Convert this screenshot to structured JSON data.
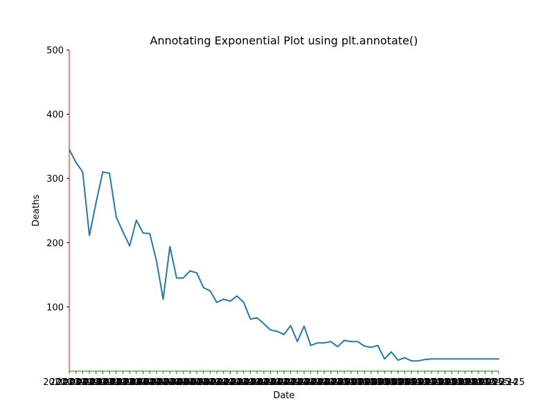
{
  "chart_data": {
    "type": "line",
    "title": "Annotating Exponential Plot using plt.annotate()",
    "xlabel": "Date",
    "ylabel": "Deaths",
    "ylim": [
      0,
      500
    ],
    "yticks": [
      100,
      200,
      300,
      400,
      500
    ],
    "grid": false,
    "colors": {
      "line": "#1f77b4",
      "left_spine": "#ff0000",
      "bottom_spine": "#008000"
    },
    "x": [
      "2020-03-22",
      "2020-03-23",
      "2020-03-24",
      "2020-03-25",
      "2020-03-26",
      "2020-03-27",
      "2020-03-28",
      "2020-03-29",
      "2020-03-30",
      "2020-03-31",
      "2020-04-01",
      "2020-04-02",
      "2020-04-03",
      "2020-04-04",
      "2020-04-05",
      "2020-04-06",
      "2020-04-07",
      "2020-04-08",
      "2020-04-09",
      "2020-04-10",
      "2020-04-11",
      "2020-04-12",
      "2020-04-13",
      "2020-04-14",
      "2020-04-15",
      "2020-04-16",
      "2020-04-17",
      "2020-04-18",
      "2020-04-19",
      "2020-04-20",
      "2020-04-21",
      "2020-04-22",
      "2020-04-23",
      "2020-04-24",
      "2020-04-25",
      "2020-04-26",
      "2020-04-27",
      "2020-04-28",
      "2020-04-29",
      "2020-04-30",
      "2020-05-01",
      "2020-05-02",
      "2020-05-03",
      "2020-05-04",
      "2020-05-05",
      "2020-05-06",
      "2020-05-07",
      "2020-05-08",
      "2020-05-09",
      "2020-05-10",
      "2020-05-11",
      "2020-05-12",
      "2020-05-13",
      "2020-05-14",
      "2020-05-15",
      "2020-05-16",
      "2020-05-17",
      "2020-05-18",
      "2020-05-19",
      "2020-05-20",
      "2020-05-21",
      "2020-05-22",
      "2020-05-23",
      "2020-05-24",
      "2020-05-25"
    ],
    "series": [
      {
        "values": [
          345,
          325,
          310,
          211,
          263,
          310,
          308,
          240,
          217,
          195,
          235,
          215,
          214,
          172,
          112,
          194,
          145,
          145,
          156,
          153,
          130,
          125,
          107,
          112,
          109,
          117,
          107,
          81,
          83,
          74,
          64,
          62,
          57,
          71,
          46,
          70,
          40,
          44,
          44,
          46,
          38,
          48,
          46,
          46,
          39,
          37,
          40,
          19,
          30,
          17,
          21,
          16,
          16,
          18,
          19,
          19,
          19,
          19,
          19,
          19,
          19,
          19,
          19,
          19,
          19
        ]
      }
    ]
  }
}
